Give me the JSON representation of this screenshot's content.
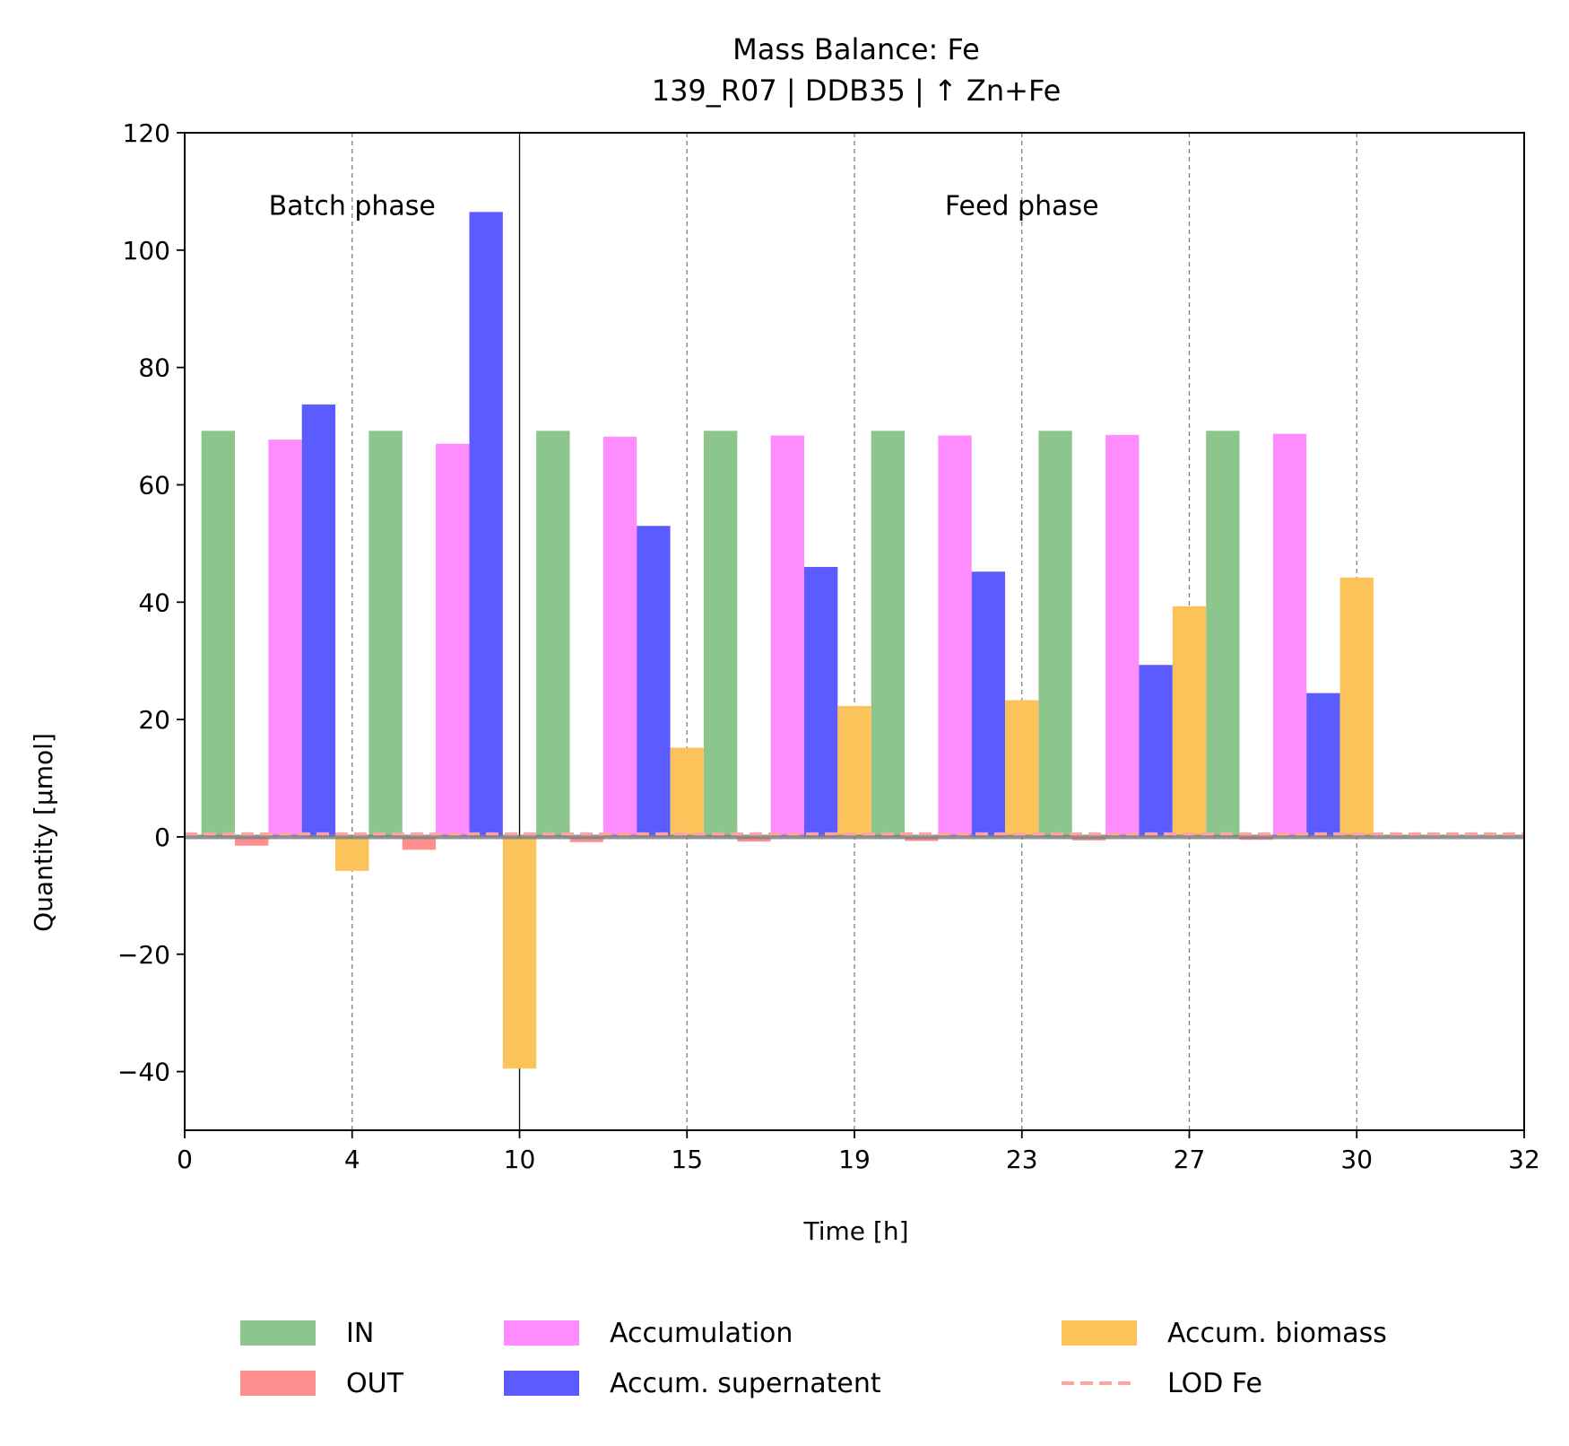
{
  "chart_data": {
    "type": "bar",
    "title": "Mass Balance: Fe",
    "subtitle": "139_R07  |  DDB35  |  ↑ Zn+Fe",
    "xlabel": "Time [h]",
    "ylabel": "Quantity [µmol]",
    "ylim": [
      -50,
      120
    ],
    "yticks": [
      -40,
      -20,
      0,
      20,
      40,
      60,
      80,
      100,
      120
    ],
    "ytick_labels": [
      "−40",
      "−20",
      "0",
      "20",
      "40",
      "60",
      "80",
      "100",
      "120"
    ],
    "xtick_labels": [
      "0",
      "4",
      "10",
      "15",
      "19",
      "23",
      "27",
      "30",
      "32"
    ],
    "phases": [
      {
        "label": "Batch phase",
        "from_interval": 0,
        "to_interval": 2
      },
      {
        "label": "Feed phase",
        "from_interval": 2,
        "to_interval": 8
      }
    ],
    "phase_boundary_interval": 2,
    "lod_value": 0.5,
    "legend_position": "bottom",
    "series": [
      {
        "name": "IN",
        "color": "#8cc68c",
        "values": [
          69.2,
          69.2,
          69.2,
          69.2,
          69.2,
          69.2,
          69.2,
          0
        ]
      },
      {
        "name": "OUT",
        "color": "#ff8f8f",
        "values": [
          -1.5,
          -2.2,
          -0.9,
          -0.8,
          -0.7,
          -0.6,
          -0.5,
          0
        ]
      },
      {
        "name": "Accumulation",
        "color": "#ff8cff",
        "values": [
          67.7,
          67.0,
          68.2,
          68.4,
          68.4,
          68.5,
          68.7,
          0
        ]
      },
      {
        "name": "Accum. supernatent",
        "color": "#5b5bff",
        "values": [
          73.7,
          106.5,
          53.0,
          46.0,
          45.2,
          29.3,
          24.5,
          0
        ]
      },
      {
        "name": "Accum. biomass",
        "color": "#fdc35b",
        "values": [
          -5.8,
          -39.5,
          15.2,
          22.3,
          23.3,
          39.3,
          44.2,
          0
        ]
      }
    ],
    "lod_series": {
      "name": "LOD Fe",
      "color": "#ffa3a3"
    },
    "grid": "vertical dashed at x ticks"
  }
}
